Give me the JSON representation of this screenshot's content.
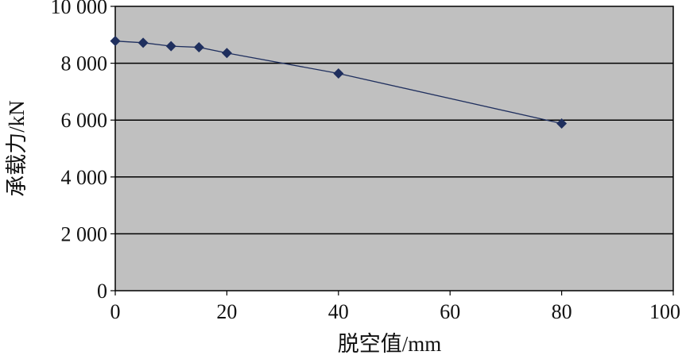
{
  "chart_data": {
    "type": "scatter",
    "title": "",
    "xlabel": "脱空值/mm",
    "ylabel": "承载力/kN",
    "xlim": [
      0,
      100
    ],
    "ylim": [
      0,
      10000
    ],
    "x_ticks": [
      0,
      20,
      40,
      60,
      80,
      100
    ],
    "x_tick_labels": [
      "0",
      "20",
      "40",
      "60",
      "80",
      "100"
    ],
    "y_ticks": [
      0,
      2000,
      4000,
      6000,
      8000,
      10000
    ],
    "y_tick_labels": [
      "0",
      "2 000",
      "4 000",
      "6 000",
      "8 000",
      "10 000"
    ],
    "grid": "horizontal",
    "legend": "none",
    "colors": {
      "plot_background": "#c0c0c0",
      "series": "#1f2f5e",
      "gridline": "#000000"
    },
    "series": [
      {
        "x": [
          0,
          5,
          10,
          15,
          20,
          40,
          80
        ],
        "y": [
          8780,
          8720,
          8600,
          8560,
          8360,
          7640,
          5880
        ]
      }
    ]
  }
}
